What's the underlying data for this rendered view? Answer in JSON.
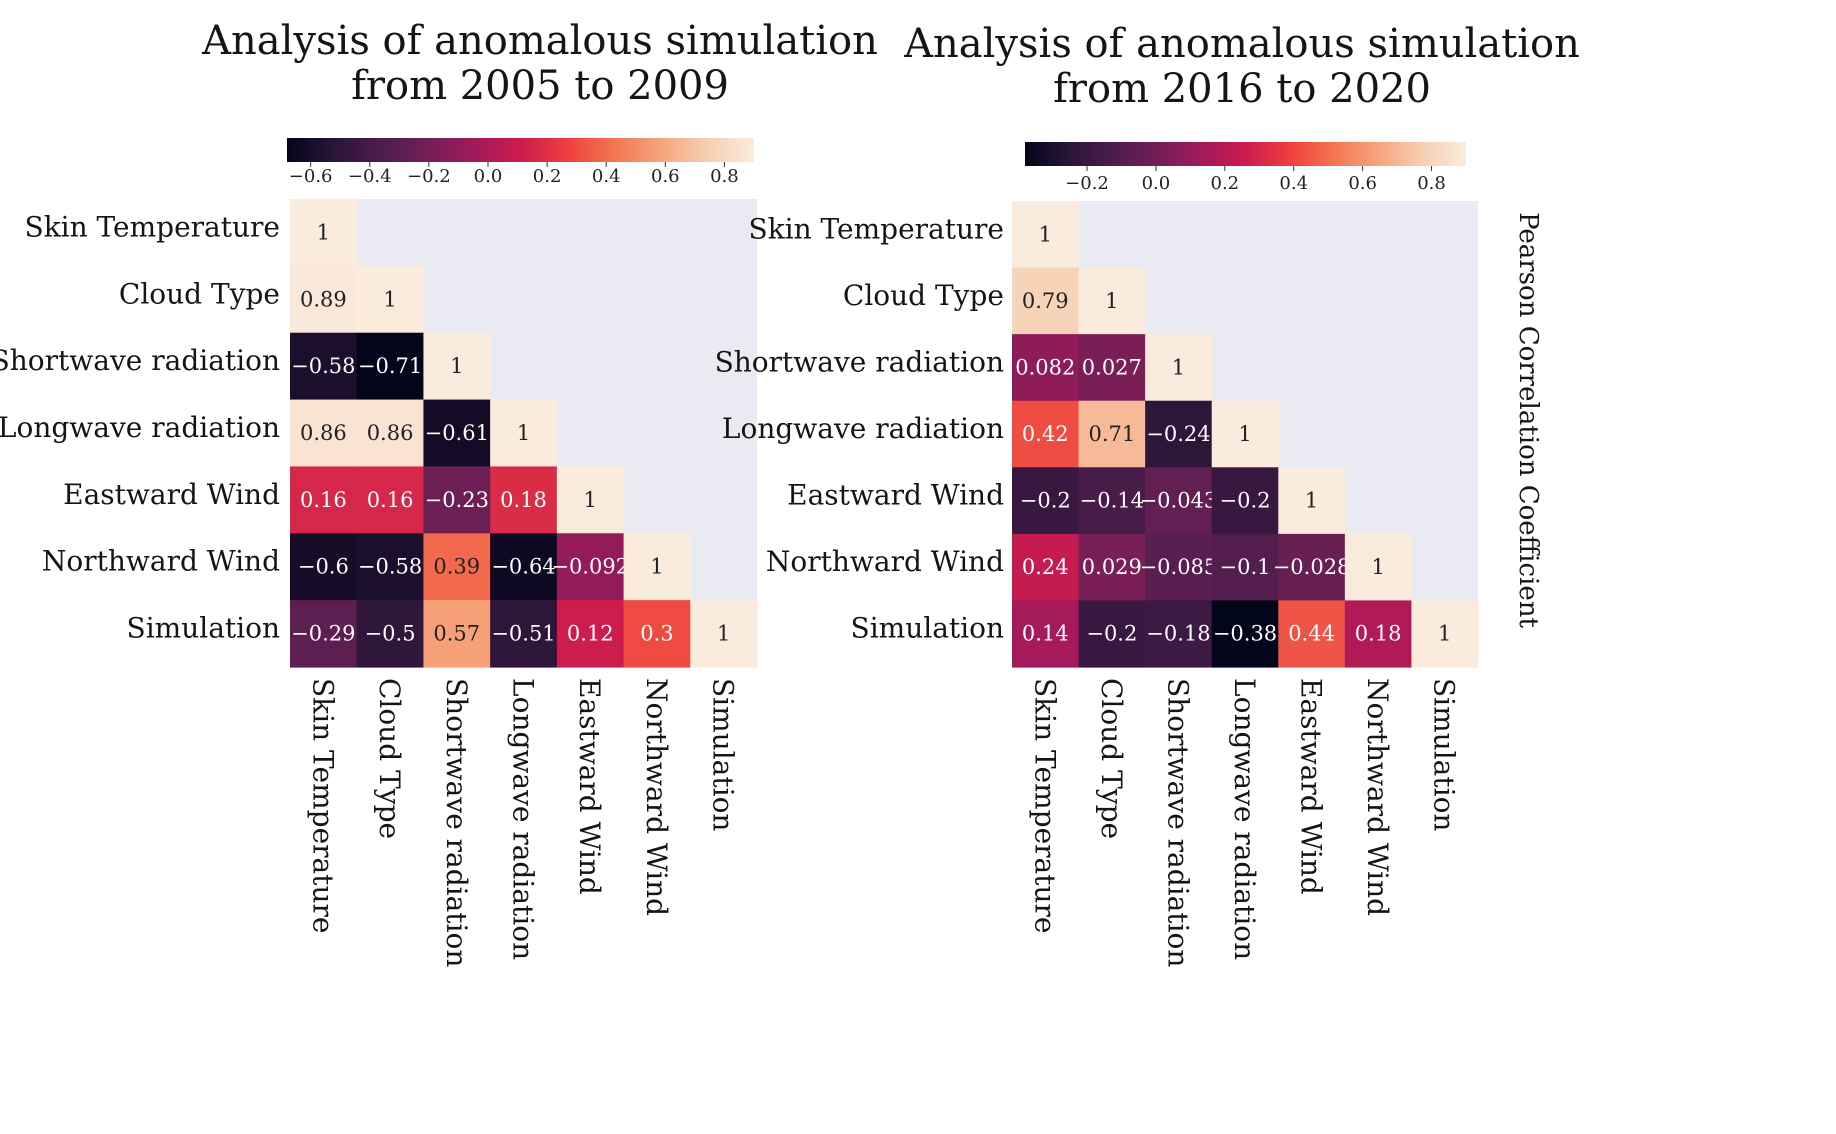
{
  "chart_data": [
    {
      "type": "heatmap",
      "title": "Analysis of anomalous simulation from 2005 to 2009",
      "title_lines": [
        "Analysis of anomalous simulation",
        "from 2005 to 2009"
      ],
      "variables": [
        "Skin Temperature",
        "Cloud Type",
        "Shortwave radiation",
        "Longwave radiation",
        "Eastward Wind",
        "Northward Wind",
        "Simulation"
      ],
      "matrix": [
        [
          1
        ],
        [
          0.89,
          1
        ],
        [
          -0.58,
          -0.71,
          1
        ],
        [
          0.86,
          0.86,
          -0.61,
          1
        ],
        [
          0.16,
          0.16,
          -0.23,
          0.18,
          1
        ],
        [
          -0.6,
          -0.58,
          0.39,
          -0.64,
          -0.092,
          1
        ],
        [
          -0.29,
          -0.5,
          0.57,
          -0.51,
          0.12,
          0.3,
          1
        ]
      ],
      "colorbar": {
        "range": [
          -0.68,
          0.9
        ],
        "ticks": [
          -0.6,
          -0.4,
          -0.2,
          0.0,
          0.2,
          0.4,
          0.6,
          0.8
        ],
        "tick_labels": [
          "−0.6",
          "−0.4",
          "−0.2",
          "0.0",
          "0.2",
          "0.4",
          "0.6",
          "0.8"
        ]
      },
      "colormap": "rocket",
      "mask": "upper-triangle"
    },
    {
      "type": "heatmap",
      "title": "Analysis of anomalous simulation from 2016 to 2020",
      "title_lines": [
        "Analysis of anomalous simulation",
        "from 2016 to 2020"
      ],
      "variables": [
        "Skin Temperature",
        "Cloud Type",
        "Shortwave radiation",
        "Longwave radiation",
        "Eastward Wind",
        "Northward Wind",
        "Simulation"
      ],
      "matrix": [
        [
          1
        ],
        [
          0.79,
          1
        ],
        [
          0.082,
          0.027,
          1
        ],
        [
          0.42,
          0.71,
          -0.24,
          1
        ],
        [
          -0.2,
          -0.14,
          -0.043,
          -0.2,
          1
        ],
        [
          0.24,
          0.029,
          -0.085,
          -0.1,
          -0.028,
          1
        ],
        [
          0.14,
          -0.2,
          -0.18,
          -0.38,
          0.44,
          0.18,
          1
        ]
      ],
      "colorbar": {
        "range": [
          -0.38,
          0.9
        ],
        "ticks": [
          -0.2,
          0.0,
          0.2,
          0.4,
          0.6,
          0.8
        ],
        "tick_labels": [
          "−0.2",
          "0.0",
          "0.2",
          "0.4",
          "0.6",
          "0.8"
        ],
        "label": "Pearson Correlation Coefficient"
      },
      "colormap": "rocket",
      "mask": "upper-triangle"
    }
  ],
  "colors": {
    "mask_background": "#eaeaf2",
    "rocket_stops": [
      "#03051a",
      "#2a1538",
      "#4c1d4b",
      "#711f57",
      "#a11a5b",
      "#cb1b4f",
      "#ed3f3e",
      "#f37651",
      "#f6a47c",
      "#f6cfb2",
      "#faebdd"
    ]
  }
}
